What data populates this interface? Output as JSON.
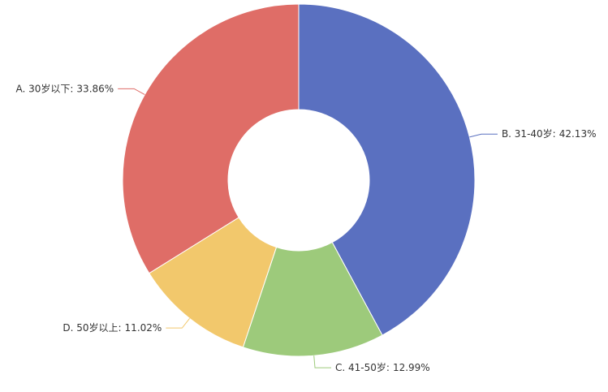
{
  "chart_data": {
    "type": "pie",
    "categories": [
      "B. 31-40岁:",
      "C. 41-50岁:",
      "D. 50岁以上:",
      "A. 30岁以下:"
    ],
    "values": [
      42.13,
      12.99,
      11.02,
      33.86
    ],
    "value_labels": [
      "42.13%",
      "12.99%",
      "11.02%",
      "33.86%"
    ],
    "colors": [
      "#5a70c0",
      "#9dca7b",
      "#f2c86c",
      "#df6d67"
    ]
  }
}
